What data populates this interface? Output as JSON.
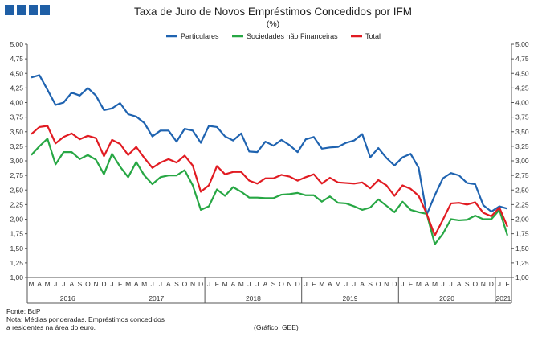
{
  "header": {
    "logo_icon": "bdp-logo-blocks"
  },
  "chart_data": {
    "type": "line",
    "title": "Taxa de Juro de Novos Empréstimos Concedidos por IFM",
    "subtitle": "(%)",
    "ylim": [
      1.0,
      5.0
    ],
    "yticks": [
      1.0,
      1.25,
      1.5,
      1.75,
      2.0,
      2.25,
      2.5,
      2.75,
      3.0,
      3.25,
      3.5,
      3.75,
      4.0,
      4.25,
      4.5,
      4.75,
      5.0
    ],
    "ytick_labels": [
      "1,00",
      "1,25",
      "1,50",
      "1,75",
      "2,00",
      "2,25",
      "2,50",
      "2,75",
      "3,00",
      "3,25",
      "3,50",
      "3,75",
      "4,00",
      "4,25",
      "4,50",
      "4,75",
      "5,00"
    ],
    "grid": false,
    "legend_position": "top",
    "month_labels": [
      "M",
      "A",
      "M",
      "J",
      "J",
      "A",
      "S",
      "O",
      "N",
      "D",
      "J",
      "F",
      "M",
      "A",
      "M",
      "J",
      "J",
      "A",
      "S",
      "O",
      "N",
      "D",
      "J",
      "F",
      "M",
      "A",
      "M",
      "J",
      "J",
      "A",
      "S",
      "O",
      "N",
      "D",
      "J",
      "F",
      "M",
      "A",
      "M",
      "J",
      "J",
      "A",
      "S",
      "O",
      "N",
      "D",
      "J",
      "F",
      "M",
      "A",
      "M",
      "J",
      "J",
      "A",
      "S",
      "O",
      "N",
      "D",
      "J",
      "F"
    ],
    "years": [
      "2016",
      "2017",
      "2018",
      "2019",
      "2020",
      "2021"
    ],
    "series": [
      {
        "name": "Particulares",
        "color": "#1f63b0",
        "values": [
          4.43,
          4.47,
          4.22,
          3.96,
          4.0,
          4.17,
          4.12,
          4.25,
          4.12,
          3.87,
          3.9,
          3.99,
          3.8,
          3.76,
          3.65,
          3.42,
          3.52,
          3.52,
          3.33,
          3.55,
          3.52,
          3.31,
          3.6,
          3.58,
          3.42,
          3.35,
          3.47,
          3.16,
          3.15,
          3.33,
          3.26,
          3.36,
          3.27,
          3.15,
          3.37,
          3.41,
          3.21,
          3.23,
          3.24,
          3.31,
          3.35,
          3.46,
          3.06,
          3.22,
          3.05,
          2.92,
          3.06,
          3.12,
          2.88,
          2.08,
          2.41,
          2.7,
          2.79,
          2.75,
          2.62,
          2.6,
          2.24,
          2.13,
          2.22,
          2.18
        ]
      },
      {
        "name": "Sociedades não Financeiras",
        "color": "#27a744",
        "values": [
          3.1,
          3.25,
          3.38,
          2.94,
          3.15,
          3.15,
          3.03,
          3.1,
          3.02,
          2.77,
          3.12,
          2.9,
          2.72,
          2.98,
          2.75,
          2.6,
          2.72,
          2.75,
          2.75,
          2.84,
          2.58,
          2.16,
          2.22,
          2.51,
          2.4,
          2.55,
          2.47,
          2.37,
          2.37,
          2.36,
          2.36,
          2.42,
          2.43,
          2.45,
          2.41,
          2.41,
          2.3,
          2.39,
          2.28,
          2.27,
          2.22,
          2.16,
          2.2,
          2.34,
          2.23,
          2.12,
          2.3,
          2.16,
          2.12,
          2.09,
          1.57,
          1.75,
          2.0,
          1.98,
          1.99,
          2.06,
          2.0,
          2.0,
          2.16,
          1.72
        ]
      },
      {
        "name": "Total",
        "color": "#e11b22",
        "values": [
          3.46,
          3.58,
          3.6,
          3.3,
          3.41,
          3.47,
          3.37,
          3.43,
          3.39,
          3.08,
          3.36,
          3.29,
          3.1,
          3.24,
          3.05,
          2.88,
          2.97,
          3.03,
          2.97,
          3.09,
          2.92,
          2.47,
          2.58,
          2.91,
          2.77,
          2.81,
          2.81,
          2.66,
          2.61,
          2.7,
          2.7,
          2.76,
          2.73,
          2.66,
          2.72,
          2.77,
          2.61,
          2.71,
          2.63,
          2.62,
          2.61,
          2.63,
          2.53,
          2.67,
          2.58,
          2.4,
          2.58,
          2.52,
          2.4,
          2.09,
          1.72,
          1.99,
          2.27,
          2.28,
          2.25,
          2.29,
          2.11,
          2.05,
          2.2,
          1.87
        ]
      }
    ]
  },
  "footer": {
    "source": "Fonte: BdP",
    "note_line1": "Nota: Médias ponderadas. Empréstimos concedidos",
    "note_line2": "a residentes na área do euro.",
    "credit": "(Gráfico: GEE)"
  }
}
